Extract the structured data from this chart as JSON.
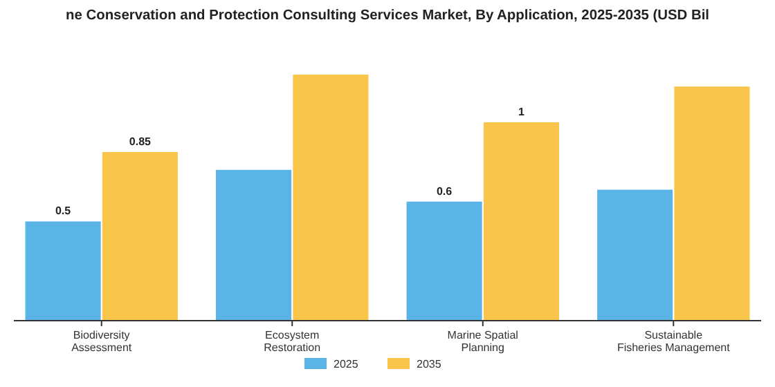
{
  "chart_data": {
    "type": "bar",
    "title": "ne Conservation and Protection Consulting Services Market, By Application, 2025-2035 (USD Bil",
    "categories": [
      "Biodiversity Assessment",
      "Ecosystem Restoration",
      "Marine Spatial Planning",
      "Sustainable Fisheries Management"
    ],
    "series": [
      {
        "name": "2025",
        "color": "#5ab4e5",
        "values": [
          0.5,
          0.76,
          0.6,
          0.66
        ],
        "value_labels": [
          "0.5",
          null,
          "0.6",
          null
        ]
      },
      {
        "name": "2035",
        "color": "#f9c54a",
        "values": [
          0.85,
          1.24,
          1,
          1.18
        ],
        "value_labels": [
          "0.85",
          null,
          "1",
          null
        ]
      }
    ],
    "tick_labels": "x",
    "legend": "bottom",
    "grid": false
  }
}
